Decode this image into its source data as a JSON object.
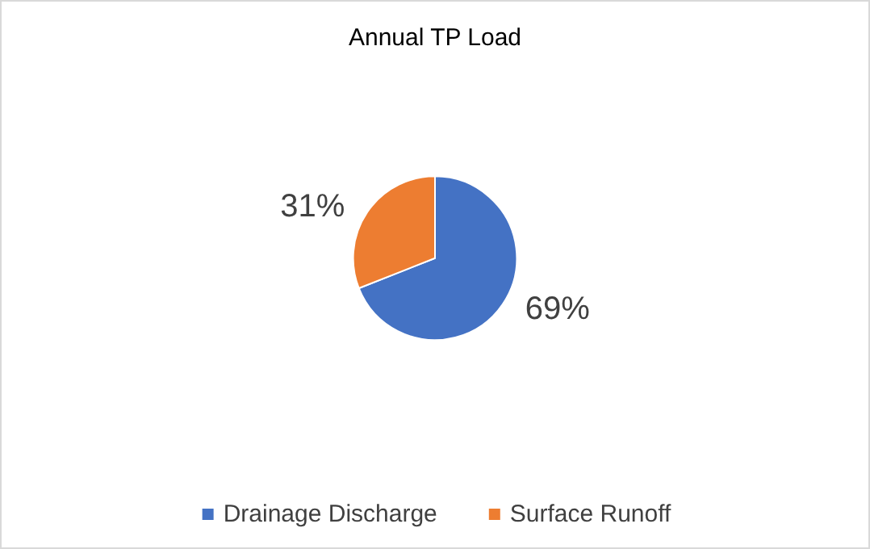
{
  "chart_data": {
    "type": "pie",
    "title": "Annual TP Load",
    "categories": [
      "Drainage Discharge",
      "Surface Runoff"
    ],
    "values": [
      69,
      31
    ],
    "value_labels": [
      "69%",
      "31%"
    ],
    "colors": [
      "#4472c4",
      "#ed7d31"
    ],
    "legend": "bottom"
  }
}
